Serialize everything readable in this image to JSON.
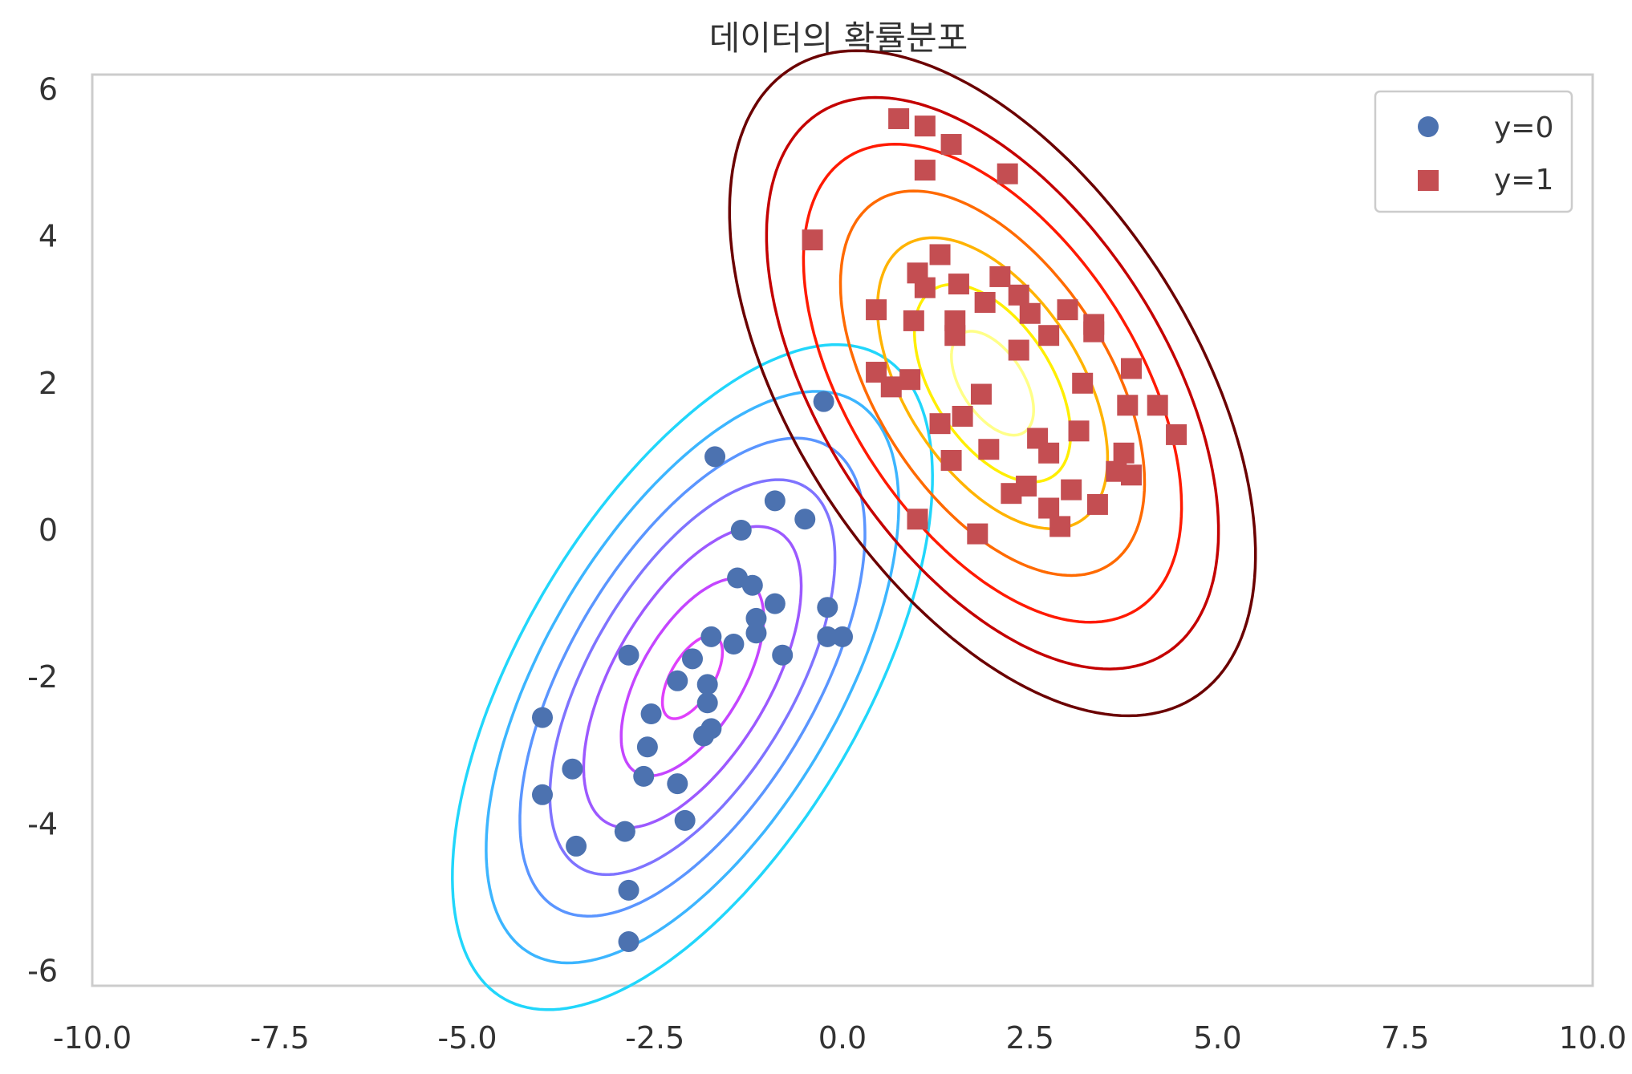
{
  "chart_data": {
    "type": "scatter",
    "title": "데이터의 확률분포",
    "xlabel": "",
    "ylabel": "",
    "xlim": [
      -10,
      10
    ],
    "ylim": [
      -6.2,
      6.2
    ],
    "grid": false,
    "legend_position": "top-right",
    "x_ticks": [
      -10,
      -7.5,
      -5,
      -2.5,
      0,
      2.5,
      5,
      7.5,
      10
    ],
    "x_tick_labels": [
      "-10.0",
      "-7.5",
      "-5.0",
      "-2.5",
      "0.0",
      "2.5",
      "5.0",
      "7.5",
      "10.0"
    ],
    "y_ticks": [
      6,
      4,
      2,
      0,
      -2,
      -4,
      -6
    ],
    "y_tick_labels": [
      "6",
      "4",
      "2",
      "0",
      "-2",
      "-4",
      "-6"
    ],
    "series": [
      {
        "name": "y=0",
        "marker": "circle",
        "color": "#4c72b0",
        "points": [
          [
            -0.25,
            1.75
          ],
          [
            -1.7,
            1.0
          ],
          [
            -0.9,
            0.4
          ],
          [
            -0.5,
            0.15
          ],
          [
            -1.35,
            0.0
          ],
          [
            -1.4,
            -0.65
          ],
          [
            -1.2,
            -0.75
          ],
          [
            -0.9,
            -1.0
          ],
          [
            -0.2,
            -1.05
          ],
          [
            -1.15,
            -1.2
          ],
          [
            -1.15,
            -1.4
          ],
          [
            -0.2,
            -1.45
          ],
          [
            0.0,
            -1.45
          ],
          [
            -1.75,
            -1.45
          ],
          [
            -1.45,
            -1.55
          ],
          [
            -2.85,
            -1.7
          ],
          [
            -0.8,
            -1.7
          ],
          [
            -2.0,
            -1.75
          ],
          [
            -2.2,
            -2.05
          ],
          [
            -1.8,
            -2.1
          ],
          [
            -2.55,
            -2.5
          ],
          [
            -1.8,
            -2.35
          ],
          [
            -1.75,
            -2.7
          ],
          [
            -2.6,
            -2.95
          ],
          [
            -1.85,
            -2.8
          ],
          [
            -4.0,
            -2.55
          ],
          [
            -3.6,
            -3.25
          ],
          [
            -2.65,
            -3.35
          ],
          [
            -2.2,
            -3.45
          ],
          [
            -4.0,
            -3.6
          ],
          [
            -2.1,
            -3.95
          ],
          [
            -2.9,
            -4.1
          ],
          [
            -3.55,
            -4.3
          ],
          [
            -2.85,
            -4.9
          ],
          [
            -2.85,
            -5.6
          ]
        ]
      },
      {
        "name": "y=1",
        "marker": "square",
        "color": "#c44e52",
        "points": [
          [
            0.75,
            5.6
          ],
          [
            1.1,
            5.5
          ],
          [
            1.45,
            5.25
          ],
          [
            1.1,
            4.9
          ],
          [
            2.2,
            4.85
          ],
          [
            -0.4,
            3.95
          ],
          [
            1.3,
            3.75
          ],
          [
            1.0,
            3.5
          ],
          [
            1.55,
            3.35
          ],
          [
            2.1,
            3.45
          ],
          [
            2.35,
            3.2
          ],
          [
            1.1,
            3.3
          ],
          [
            1.9,
            3.1
          ],
          [
            0.45,
            3.0
          ],
          [
            3.0,
            3.0
          ],
          [
            2.5,
            2.95
          ],
          [
            1.5,
            2.85
          ],
          [
            0.95,
            2.85
          ],
          [
            3.35,
            2.8
          ],
          [
            3.35,
            2.7
          ],
          [
            2.75,
            2.65
          ],
          [
            1.5,
            2.65
          ],
          [
            2.35,
            2.45
          ],
          [
            0.45,
            2.15
          ],
          [
            3.85,
            2.2
          ],
          [
            0.9,
            2.05
          ],
          [
            0.65,
            1.95
          ],
          [
            3.2,
            2.0
          ],
          [
            1.85,
            1.85
          ],
          [
            3.8,
            1.7
          ],
          [
            4.2,
            1.7
          ],
          [
            1.6,
            1.55
          ],
          [
            1.3,
            1.45
          ],
          [
            3.15,
            1.35
          ],
          [
            4.45,
            1.3
          ],
          [
            2.6,
            1.25
          ],
          [
            1.95,
            1.1
          ],
          [
            2.75,
            1.05
          ],
          [
            1.45,
            0.95
          ],
          [
            3.75,
            1.05
          ],
          [
            3.65,
            0.8
          ],
          [
            3.85,
            0.75
          ],
          [
            2.45,
            0.6
          ],
          [
            3.05,
            0.55
          ],
          [
            2.25,
            0.5
          ],
          [
            3.4,
            0.35
          ],
          [
            2.75,
            0.3
          ],
          [
            1.0,
            0.15
          ],
          [
            2.9,
            0.05
          ],
          [
            1.8,
            -0.05
          ]
        ]
      }
    ],
    "contours": [
      {
        "class": "y=0",
        "center": [
          -2.0,
          -2.0
        ],
        "cov": [
          [
            1.0,
            0.85
          ],
          [
            0.85,
            2.0
          ]
        ],
        "levels": [
          {
            "mahalanobis": 0.4,
            "color": "#e040fb"
          },
          {
            "mahalanobis": 0.95,
            "color": "#c445ff"
          },
          {
            "mahalanobis": 1.45,
            "color": "#9c59ff"
          },
          {
            "mahalanobis": 1.9,
            "color": "#7f73ff"
          },
          {
            "mahalanobis": 2.3,
            "color": "#5a95ff"
          },
          {
            "mahalanobis": 2.75,
            "color": "#3cb5ff"
          },
          {
            "mahalanobis": 3.2,
            "color": "#21d6fb"
          }
        ]
      },
      {
        "class": "y=1",
        "center": [
          2.0,
          2.0
        ],
        "cov": [
          [
            1.2,
            -0.8
          ],
          [
            -0.8,
            2.0
          ]
        ],
        "levels": [
          {
            "mahalanobis": 0.5,
            "color": "#ffff88"
          },
          {
            "mahalanobis": 0.95,
            "color": "#ffee00"
          },
          {
            "mahalanobis": 1.4,
            "color": "#ffb300"
          },
          {
            "mahalanobis": 1.85,
            "color": "#ff6a00"
          },
          {
            "mahalanobis": 2.3,
            "color": "#ff1a00"
          },
          {
            "mahalanobis": 2.75,
            "color": "#c40000"
          },
          {
            "mahalanobis": 3.2,
            "color": "#6b0000"
          }
        ]
      }
    ]
  }
}
